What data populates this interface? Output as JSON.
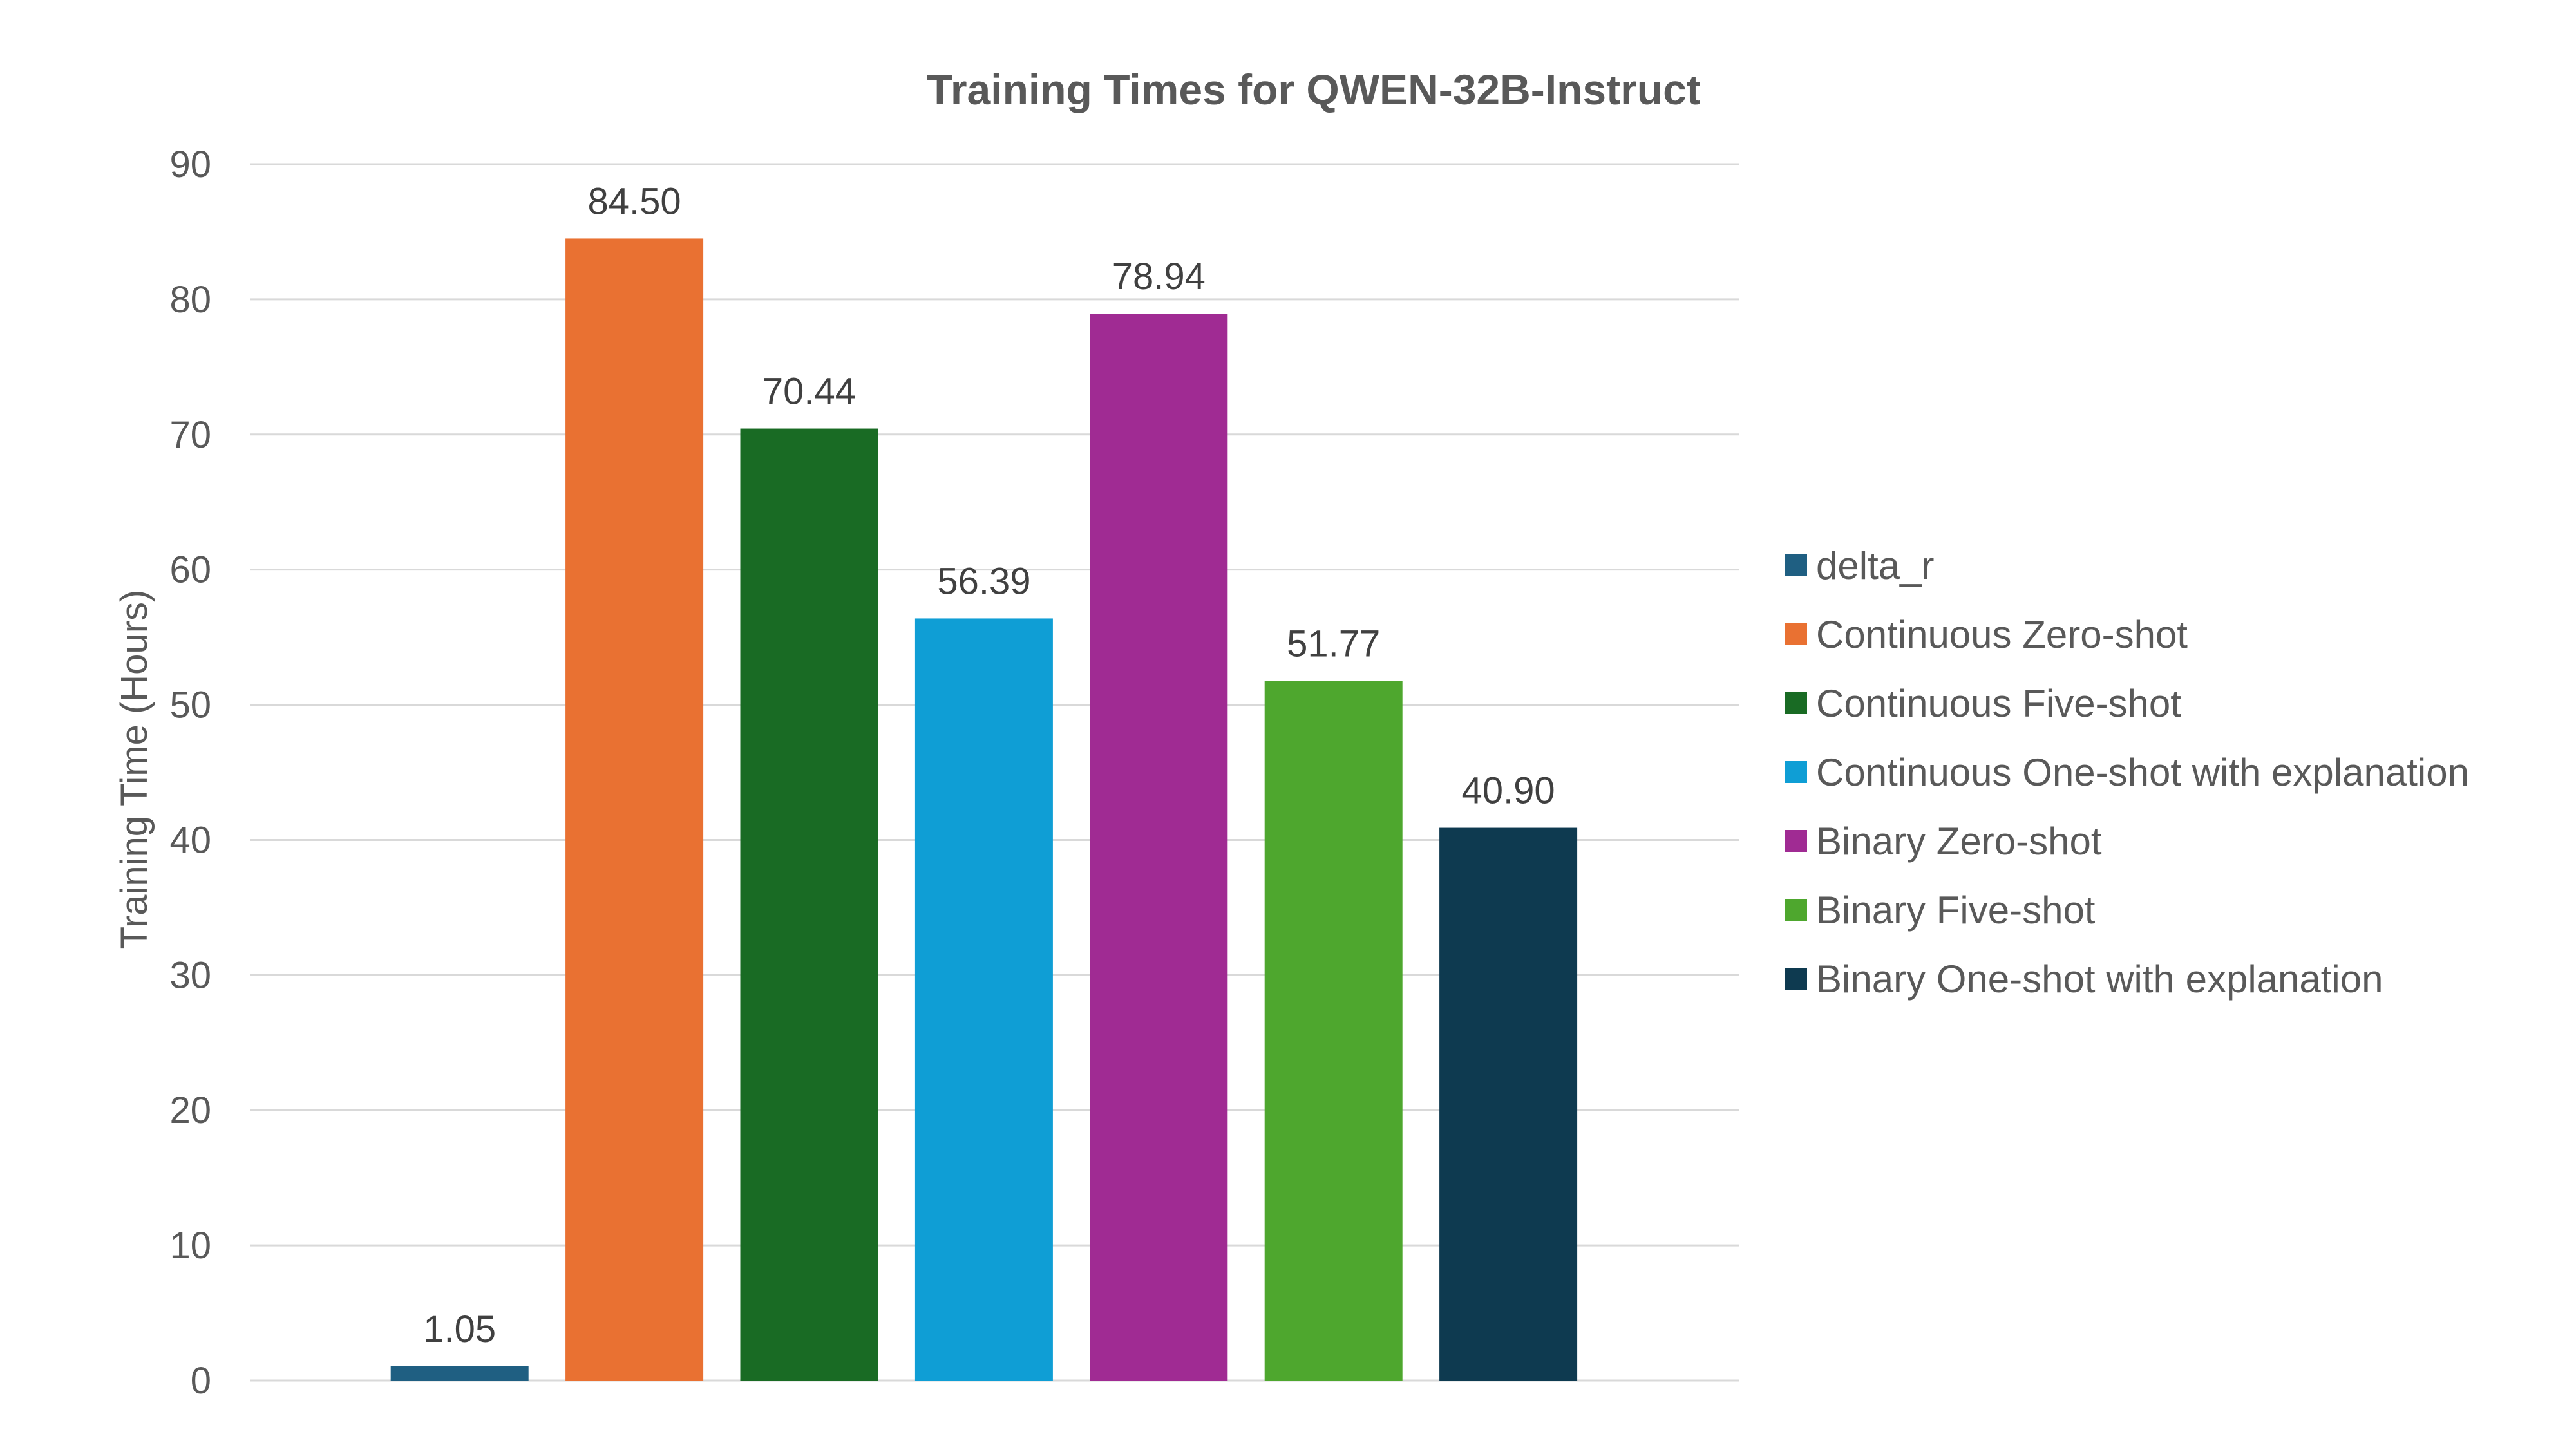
{
  "chart_data": {
    "type": "bar",
    "title": "Training Times for QWEN-32B-Instruct",
    "ylabel": "Training Time (Hours)",
    "xlabel": "",
    "ylim": [
      0,
      90
    ],
    "y_ticks": [
      0,
      10,
      20,
      30,
      40,
      50,
      60,
      70,
      80,
      90
    ],
    "grid": true,
    "legend_position": "right",
    "series": [
      {
        "name": "delta_r",
        "value": 1.05,
        "label": "1.05",
        "color": "#1f5f82"
      },
      {
        "name": "Continuous Zero-shot",
        "value": 84.5,
        "label": "84.50",
        "color": "#e97132"
      },
      {
        "name": "Continuous Five-shot",
        "value": 70.44,
        "label": "70.44",
        "color": "#196b24"
      },
      {
        "name": "Continuous One-shot with explanation",
        "value": 56.39,
        "label": "56.39",
        "color": "#0f9ed5"
      },
      {
        "name": "Binary Zero-shot",
        "value": 78.94,
        "label": "78.94",
        "color": "#a02b93"
      },
      {
        "name": "Binary Five-shot",
        "value": 51.77,
        "label": "51.77",
        "color": "#4ea72e"
      },
      {
        "name": "Binary One-shot with explanation",
        "value": 40.9,
        "label": "40.90",
        "color": "#0e3a50"
      }
    ]
  }
}
